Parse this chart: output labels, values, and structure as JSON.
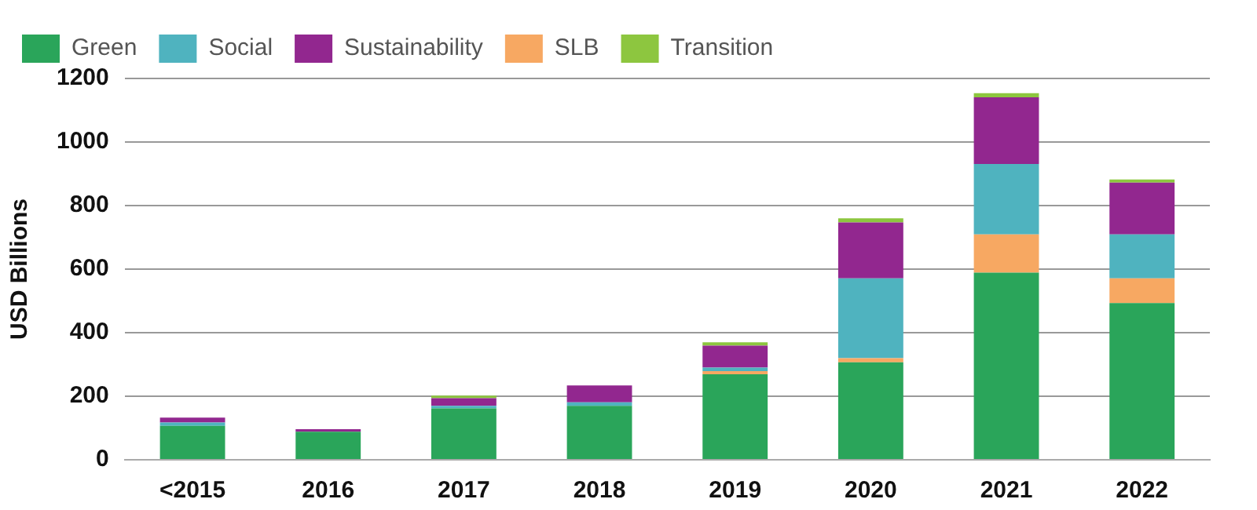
{
  "chart_data": {
    "type": "bar",
    "stacked": true,
    "ylabel": "USD Billions",
    "categories": [
      "<2015",
      "2016",
      "2017",
      "2018",
      "2019",
      "2020",
      "2021",
      "2022"
    ],
    "series": [
      {
        "name": "Green",
        "color": "#2aa55a",
        "values": [
          107,
          88,
          162,
          170,
          269,
          307,
          589,
          493
        ]
      },
      {
        "name": "SLB",
        "color": "#f7a862",
        "values": [
          null,
          null,
          null,
          null,
          10,
          13,
          120,
          78
        ]
      },
      {
        "name": "Social",
        "color": "#4fb3bf",
        "values": [
          10,
          null,
          8,
          11,
          11,
          251,
          222,
          138
        ]
      },
      {
        "name": "Sustainability",
        "color": "#92278f",
        "values": [
          16,
          8,
          24,
          53,
          69,
          176,
          210,
          163
        ]
      },
      {
        "name": "Transition",
        "color": "#8dc63f",
        "values": [
          null,
          null,
          8,
          null,
          11,
          13,
          13,
          10
        ]
      }
    ],
    "ylim": [
      0,
      1200
    ],
    "yticks": [
      0,
      200,
      400,
      600,
      800,
      1000,
      1200
    ],
    "grid": "y",
    "legend": "top left"
  }
}
